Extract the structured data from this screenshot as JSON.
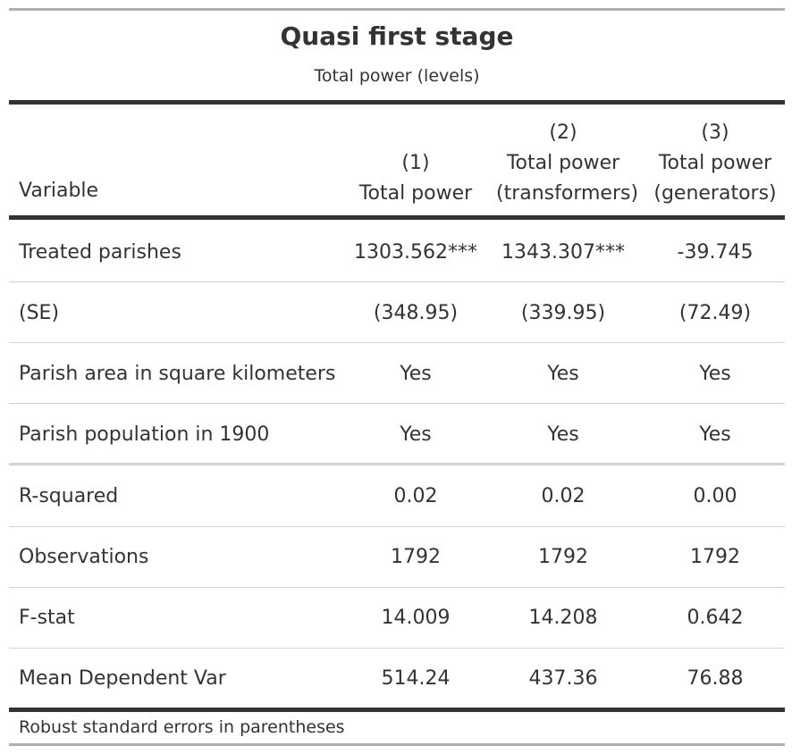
{
  "table": {
    "title": "Quasi first stage",
    "subtitle": "Total power (levels)",
    "header": {
      "variable": "Variable",
      "columns": [
        {
          "number": "(1)",
          "line1": "Total power",
          "line2": ""
        },
        {
          "number": "(2)",
          "line1": "Total power",
          "line2": "(transformers)"
        },
        {
          "number": "(3)",
          "line1": "Total power",
          "line2": "(generators)"
        }
      ]
    },
    "rows": [
      {
        "label": "Treated parishes",
        "values": [
          "1303.562***",
          "1343.307***",
          "-39.745"
        ]
      },
      {
        "label": "(SE)",
        "values": [
          "(348.95)",
          "(339.95)",
          "(72.49)"
        ]
      },
      {
        "label": "Parish area in square kilometers",
        "values": [
          "Yes",
          "Yes",
          "Yes"
        ]
      },
      {
        "label": "Parish population in 1900",
        "values": [
          "Yes",
          "Yes",
          "Yes"
        ]
      },
      {
        "label": "R-squared",
        "values": [
          "0.02",
          "0.02",
          "0.00"
        ]
      },
      {
        "label": "Observations",
        "values": [
          "1792",
          "1792",
          "1792"
        ]
      },
      {
        "label": "F-stat",
        "values": [
          "14.009",
          "14.208",
          "0.642"
        ]
      },
      {
        "label": "Mean Dependent Var",
        "values": [
          "514.24",
          "437.36",
          "76.88"
        ]
      }
    ],
    "footnote": "Robust standard errors in parentheses"
  }
}
